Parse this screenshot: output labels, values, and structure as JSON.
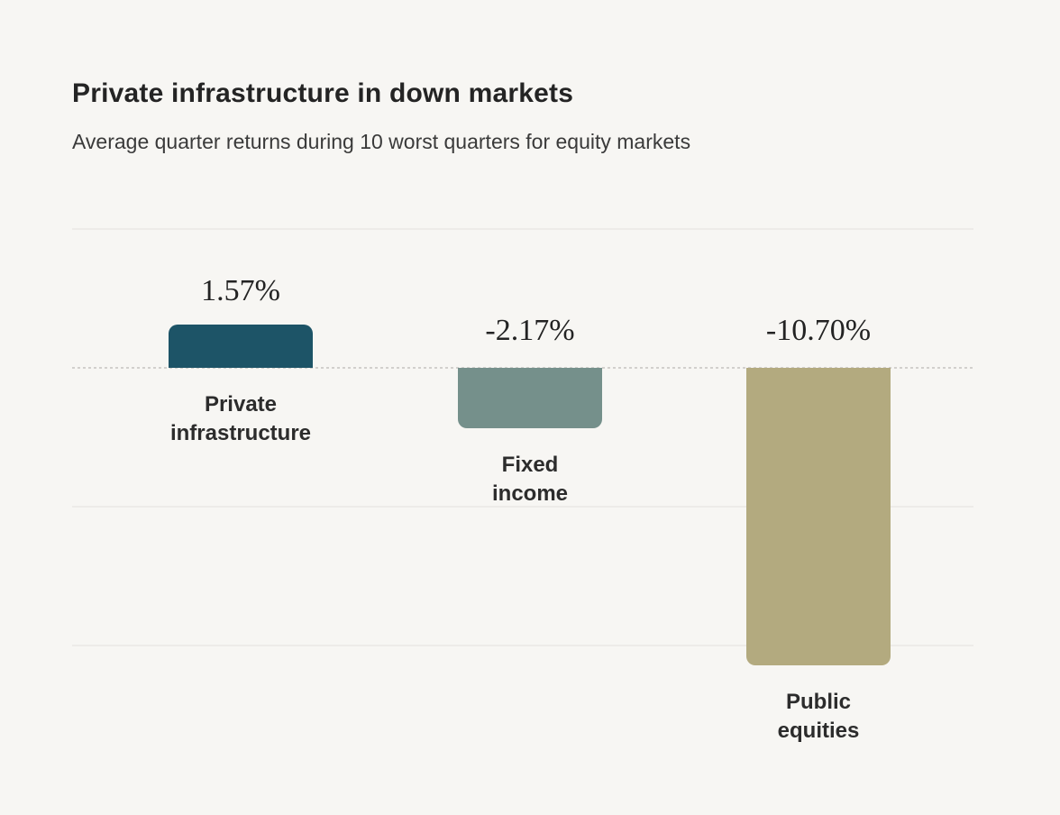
{
  "page": {
    "background": "#f7f6f3",
    "gridline_color": "#edebe8",
    "zero_line_color": "#d2d0cd"
  },
  "header": {
    "title": "Private infrastructure in down markets",
    "subtitle": "Average quarter returns during 10 worst quarters for equity markets"
  },
  "chart_data": {
    "type": "bar",
    "title": "Private infrastructure in down markets",
    "subtitle": "Average quarter returns during 10 worst quarters for equity markets",
    "categories": [
      "Private infrastructure",
      "Fixed income",
      "Public equities"
    ],
    "values": [
      1.57,
      -2.17,
      -10.7
    ],
    "series": [
      {
        "name": "Private infrastructure",
        "label_lines": [
          "Private",
          "infrastructure"
        ],
        "value": 1.57,
        "value_label": "1.57%",
        "color": "#1d5467"
      },
      {
        "name": "Fixed income",
        "label_lines": [
          "Fixed",
          "income"
        ],
        "value": -2.17,
        "value_label": "-2.17%",
        "color": "#75908b"
      },
      {
        "name": "Public equities",
        "label_lines": [
          "Public",
          "equities"
        ],
        "value": -10.7,
        "value_label": "-10.70%",
        "color": "#b3aa7f"
      }
    ],
    "xlabel": "",
    "ylabel": "",
    "ylim": [
      -11.5,
      5
    ],
    "gridlines_pct": [
      5,
      0,
      -5,
      -10
    ],
    "zero_line_style": "dotted",
    "grid": true,
    "legend": false,
    "axis_tick_labels": false
  }
}
